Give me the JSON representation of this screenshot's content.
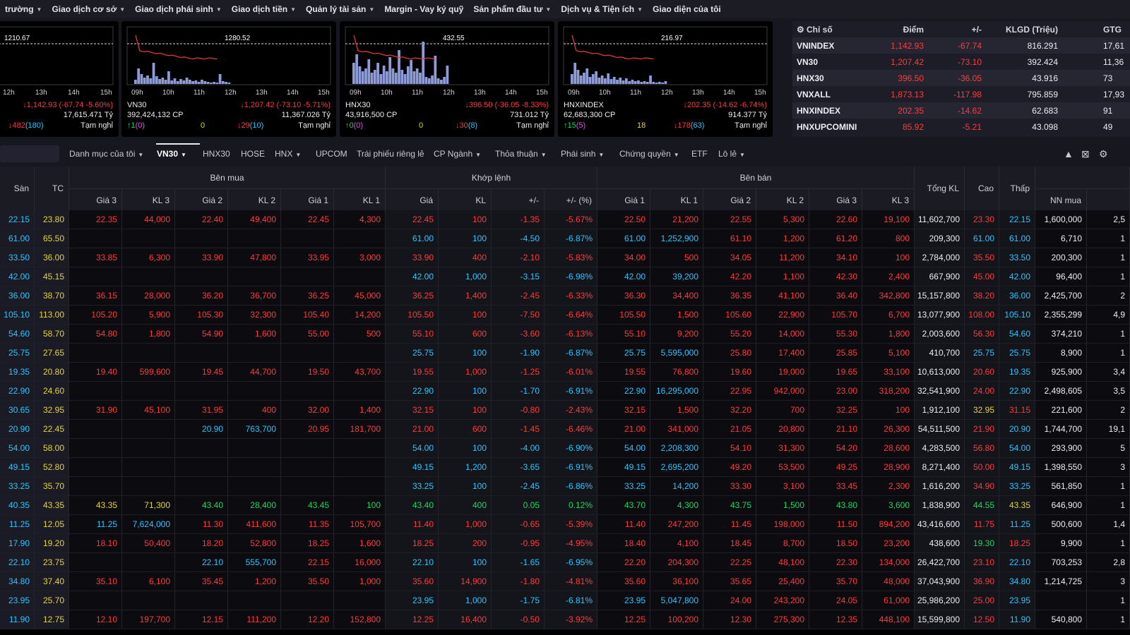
{
  "menu": [
    {
      "label": "trường",
      "chev": true
    },
    {
      "label": "Giao dịch cơ sở",
      "chev": true
    },
    {
      "label": "Giao dịch phái sinh",
      "chev": true
    },
    {
      "label": "Giao dịch tiền",
      "chev": true
    },
    {
      "label": "Quản lý tài sản",
      "chev": true
    },
    {
      "label": "Margin - Vay ký quỹ",
      "chev": false
    },
    {
      "label": "Sản phẩm đầu tư",
      "chev": true
    },
    {
      "label": "Dịch vụ & Tiện ích",
      "chev": true
    },
    {
      "label": "Giao diện của tôi",
      "chev": false
    }
  ],
  "charts": [
    {
      "ref_label": "1210.67",
      "hours": [
        "12h",
        "13h",
        "14h",
        "15h"
      ],
      "name": "",
      "change": "↓1,142.93 (-67.74 -5.60%)",
      "volume": "",
      "value": "17,615.471 Tỷ",
      "down": "↓482",
      "down_floor": "(180)",
      "up": "",
      "up_ceil": "",
      "unch": "",
      "status": "Tạm nghỉ",
      "bars": []
    },
    {
      "ref_label": "1280.52",
      "hours": [
        "09h",
        "10h",
        "11h",
        "12h",
        "13h",
        "14h",
        "15h"
      ],
      "name": "VN30",
      "change": "↓1,207.42 (-73.10 -5.71%)",
      "volume": "392,424,132 CP",
      "value": "11,367.026 Tỷ",
      "up": "↑1",
      "up_ceil": "(0)",
      "unch": "0",
      "down": "↓29",
      "down_floor": "(10)",
      "status": "Tạm nghỉ",
      "bars": [
        6,
        22,
        14,
        9,
        12,
        8,
        30,
        11,
        7,
        9,
        6,
        18,
        5,
        8,
        4,
        7,
        5,
        9,
        6,
        4,
        5,
        3,
        6,
        4,
        3,
        2,
        3,
        2,
        14,
        4,
        3,
        2
      ]
    },
    {
      "ref_label": "432.55",
      "hours": [
        "09h",
        "10h",
        "11h",
        "12h",
        "13h",
        "14h",
        "15h"
      ],
      "name": "HNX30",
      "change": "↓396.50 (-36.05 -8.33%)",
      "volume": "43,916,500 CP",
      "value": "731.012 Tỷ",
      "up": "↑0",
      "up_ceil": "(0)",
      "unch": "0",
      "down": "↓30",
      "down_floor": "(8)",
      "status": "Tạm nghỉ",
      "bars": [
        30,
        42,
        25,
        18,
        22,
        35,
        16,
        20,
        30,
        14,
        26,
        18,
        38,
        22,
        16,
        48,
        20,
        14,
        25,
        34,
        18,
        22,
        16,
        60,
        10,
        8,
        12,
        40,
        8,
        6,
        10,
        26
      ]
    },
    {
      "ref_label": "216.97",
      "hours": [
        "09h",
        "10h",
        "11h",
        "12h",
        "13h",
        "14h",
        "15h"
      ],
      "name": "HNXINDEX",
      "change": "↓202.35 (-14.62 -6.74%)",
      "volume": "62,683,300 CP",
      "value": "914.377 Tỷ",
      "up": "↑15",
      "up_ceil": "(5)",
      "unch": "18",
      "down": "↓178",
      "down_floor": "(63)",
      "status": "Tạm nghỉ",
      "bars": [
        14,
        30,
        20,
        12,
        16,
        22,
        10,
        14,
        18,
        9,
        12,
        8,
        15,
        7,
        10,
        6,
        9,
        5,
        8,
        4,
        6,
        4,
        5,
        3,
        4,
        3,
        12,
        3,
        2,
        3,
        2,
        4
      ]
    }
  ],
  "index_header": {
    "col1": "Chỉ số",
    "col2": "Điểm",
    "col3": "+/-",
    "col4": "KLGD (Triệu)",
    "col5": "GTG"
  },
  "index_rows": [
    {
      "name": "VNINDEX",
      "point": "1,142.93",
      "chg": "-67.74",
      "vol": "816.291",
      "val": "17,61"
    },
    {
      "name": "VN30",
      "point": "1,207.42",
      "chg": "-73.10",
      "vol": "392.424",
      "val": "11,36"
    },
    {
      "name": "HNX30",
      "point": "396.50",
      "chg": "-36.05",
      "vol": "43.916",
      "val": "73"
    },
    {
      "name": "VNXALL",
      "point": "1,873.13",
      "chg": "-117.98",
      "vol": "795.859",
      "val": "17,93"
    },
    {
      "name": "HNXINDEX",
      "point": "202.35",
      "chg": "-14.62",
      "vol": "62.683",
      "val": "91"
    },
    {
      "name": "HNXUPCOMINI",
      "point": "85.92",
      "chg": "-5.21",
      "vol": "43.098",
      "val": "49"
    }
  ],
  "tabs": [
    {
      "label": "Danh mục của tôi",
      "chev": true,
      "active": false
    },
    {
      "label": "VN30",
      "chev": true,
      "active": true
    },
    {
      "label": "HNX30",
      "chev": false,
      "active": false
    },
    {
      "label": "HOSE",
      "chev": false,
      "active": false
    },
    {
      "label": "HNX",
      "chev": true,
      "active": false
    },
    {
      "label": "UPCOM",
      "chev": false,
      "active": false
    },
    {
      "label": "Trái phiếu riêng lẻ",
      "chev": false,
      "active": false
    },
    {
      "label": "CP Ngành",
      "chev": true,
      "active": false
    },
    {
      "label": "Thỏa thuận",
      "chev": true,
      "active": false
    },
    {
      "label": "Phái sinh",
      "chev": true,
      "active": false
    },
    {
      "label": "Chứng quyền",
      "chev": true,
      "active": false
    },
    {
      "label": "ETF",
      "chev": false,
      "active": false
    },
    {
      "label": "Lô lẻ",
      "chev": true,
      "active": false
    }
  ],
  "board_header": {
    "san": "Sàn",
    "tc": "TC",
    "buy": "Bên mua",
    "match": "Khớp lệnh",
    "sell": "Bên bán",
    "total": "Tổng KL",
    "high": "Cao",
    "low": "Thấp",
    "sub": [
      "Giá 3",
      "KL 3",
      "Giá 2",
      "KL 2",
      "Giá 1",
      "KL 1",
      "Giá",
      "KL",
      "+/-",
      "+/- (%)",
      "Giá 1",
      "KL 1",
      "Giá 2",
      "KL 2",
      "Giá 3",
      "KL 3"
    ],
    "nn": "NN mua"
  },
  "rows": [
    [
      "22.15",
      "23.80",
      "22.35",
      "44,000",
      "22.40",
      "49,400",
      "22.45",
      "4,300",
      "22.45",
      "100",
      "-1.35",
      "-5.67%",
      "22.50",
      "21,200",
      "22.55",
      "5,300",
      "22.60",
      "19,100",
      "11,602,700",
      "23.30",
      "22.15",
      "1,600,000",
      "2,5"
    ],
    [
      "61.00",
      "65.50",
      "",
      "",
      "",
      "",
      "",
      "",
      "61.00",
      "100",
      "-4.50",
      "-6.87%",
      "61.00",
      "1,252,900",
      "61.10",
      "1,200",
      "61.20",
      "800",
      "209,300",
      "61.00",
      "61.00",
      "6,710",
      "1"
    ],
    [
      "33.50",
      "36.00",
      "33.85",
      "6,300",
      "33.90",
      "47,800",
      "33.95",
      "3,000",
      "33.90",
      "400",
      "-2.10",
      "-5.83%",
      "34.00",
      "500",
      "34.05",
      "11,200",
      "34.10",
      "100",
      "2,784,000",
      "35.50",
      "33.50",
      "200,300",
      "1"
    ],
    [
      "42.00",
      "45.15",
      "",
      "",
      "",
      "",
      "",
      "",
      "42.00",
      "1,000",
      "-3.15",
      "-6.98%",
      "42.00",
      "39,200",
      "42.20",
      "1,100",
      "42.30",
      "2,400",
      "667,900",
      "45.00",
      "42.00",
      "96,400",
      "1"
    ],
    [
      "36.00",
      "38.70",
      "36.15",
      "28,000",
      "36.20",
      "36,700",
      "36.25",
      "45,000",
      "36.25",
      "1,400",
      "-2.45",
      "-6.33%",
      "36.30",
      "34,400",
      "36.35",
      "41,100",
      "36.40",
      "342,800",
      "15,157,800",
      "38.20",
      "36.00",
      "2,425,700",
      "2"
    ],
    [
      "105.10",
      "113.00",
      "105.20",
      "5,900",
      "105.30",
      "32,300",
      "105.40",
      "14,200",
      "105.50",
      "100",
      "-7.50",
      "-6.64%",
      "105.50",
      "1,500",
      "105.60",
      "22,900",
      "105.70",
      "6,700",
      "13,077,900",
      "108.00",
      "105.10",
      "2,355,299",
      "4,9"
    ],
    [
      "54.60",
      "58.70",
      "54.80",
      "1,800",
      "54.90",
      "1,600",
      "55.00",
      "500",
      "55.10",
      "600",
      "-3.60",
      "-6.13%",
      "55.10",
      "9,200",
      "55.20",
      "14,000",
      "55.30",
      "1,800",
      "2,003,600",
      "56.30",
      "54.60",
      "374,210",
      "1"
    ],
    [
      "25.75",
      "27.65",
      "",
      "",
      "",
      "",
      "",
      "",
      "25.75",
      "100",
      "-1.90",
      "-6.87%",
      "25.75",
      "5,595,000",
      "25.80",
      "17,400",
      "25.85",
      "5,100",
      "410,700",
      "25.75",
      "25.75",
      "8,900",
      "1"
    ],
    [
      "19.35",
      "20.80",
      "19.40",
      "599,600",
      "19.45",
      "44,700",
      "19.50",
      "43,700",
      "19.55",
      "1,000",
      "-1.25",
      "-6.01%",
      "19.55",
      "76,800",
      "19.60",
      "19,000",
      "19.65",
      "33,100",
      "10,613,000",
      "20.60",
      "19.35",
      "925,900",
      "3,4"
    ],
    [
      "22.90",
      "24.60",
      "",
      "",
      "",
      "",
      "",
      "",
      "22.90",
      "100",
      "-1.70",
      "-6.91%",
      "22.90",
      "16,295,000",
      "22.95",
      "942,000",
      "23.00",
      "318,200",
      "32,541,900",
      "24.00",
      "22.90",
      "2,498,605",
      "3,5"
    ],
    [
      "30.65",
      "32.95",
      "31.90",
      "45,100",
      "31.95",
      "400",
      "32.00",
      "1,400",
      "32.15",
      "100",
      "-0.80",
      "-2.43%",
      "32.15",
      "1,500",
      "32.20",
      "700",
      "32.25",
      "100",
      "1,912,100",
      "32.95",
      "31.15",
      "221,600",
      "2"
    ],
    [
      "20.90",
      "22.45",
      "",
      "",
      "20.90",
      "763,700",
      "20.95",
      "181,700",
      "21.00",
      "600",
      "-1.45",
      "-6.46%",
      "21.00",
      "341,000",
      "21.05",
      "20,800",
      "21.10",
      "26,300",
      "54,511,500",
      "21.90",
      "20.90",
      "1,744,700",
      "19,1"
    ],
    [
      "54.00",
      "58.00",
      "",
      "",
      "",
      "",
      "",
      "",
      "54.00",
      "100",
      "-4.00",
      "-6.90%",
      "54.00",
      "2,208,300",
      "54.10",
      "31,300",
      "54.20",
      "28,600",
      "4,283,500",
      "56.80",
      "54.00",
      "293,900",
      "5"
    ],
    [
      "49.15",
      "52.80",
      "",
      "",
      "",
      "",
      "",
      "",
      "49.15",
      "1,200",
      "-3.65",
      "-6.91%",
      "49.15",
      "2,695,200",
      "49.20",
      "53,500",
      "49.25",
      "28,900",
      "8,271,400",
      "50.00",
      "49.15",
      "1,398,550",
      "3"
    ],
    [
      "33.25",
      "35.70",
      "",
      "",
      "",
      "",
      "",
      "",
      "33.25",
      "100",
      "-2.45",
      "-6.86%",
      "33.25",
      "14,200",
      "33.30",
      "3,100",
      "33.45",
      "2,300",
      "1,616,200",
      "34.90",
      "33.25",
      "561,850",
      "1"
    ],
    [
      "40.35",
      "43.35",
      "43.35",
      "71,300",
      "43.40",
      "28,400",
      "43.45",
      "100",
      "43.40",
      "400",
      "0.05",
      "0.12%",
      "43.70",
      "4,300",
      "43.75",
      "1,500",
      "43.80",
      "3,600",
      "1,838,900",
      "44.55",
      "43.35",
      "646,900",
      "1"
    ],
    [
      "11.25",
      "12.05",
      "11.25",
      "7,624,000",
      "11.30",
      "411,600",
      "11.35",
      "105,700",
      "11.40",
      "1,000",
      "-0.65",
      "-5.39%",
      "11.40",
      "247,200",
      "11.45",
      "198,000",
      "11.50",
      "894,200",
      "43,416,600",
      "11.75",
      "11.25",
      "500,600",
      "1,4"
    ],
    [
      "17.90",
      "19.20",
      "18.10",
      "50,400",
      "18.20",
      "52,800",
      "18.25",
      "1,600",
      "18.25",
      "200",
      "-0.95",
      "-4.95%",
      "18.40",
      "4,100",
      "18.45",
      "8,700",
      "18.50",
      "23,200",
      "438,600",
      "19.30",
      "18.25",
      "9,900",
      "1"
    ],
    [
      "22.10",
      "23.75",
      "",
      "",
      "22.10",
      "555,700",
      "22.15",
      "16,000",
      "22.10",
      "100",
      "-1.65",
      "-6.95%",
      "22.20",
      "204,300",
      "22.25",
      "48,100",
      "22.30",
      "134,000",
      "26,422,700",
      "23.10",
      "22.10",
      "703,253",
      "2,8"
    ],
    [
      "34.80",
      "37.40",
      "35.10",
      "6,100",
      "35.45",
      "1,200",
      "35.50",
      "1,000",
      "35.60",
      "14,900",
      "-1.80",
      "-4.81%",
      "35.60",
      "36,100",
      "35.65",
      "25,400",
      "35.70",
      "48,000",
      "37,043,900",
      "36.90",
      "34.80",
      "1,214,725",
      "3"
    ],
    [
      "23.95",
      "25.70",
      "",
      "",
      "",
      "",
      "",
      "",
      "23.95",
      "1,000",
      "-1.75",
      "-6.81%",
      "23.95",
      "5,047,800",
      "24.00",
      "243,200",
      "24.05",
      "61,000",
      "25,986,200",
      "25.00",
      "23.95",
      "",
      "1"
    ],
    [
      "11.90",
      "12.75",
      "12.10",
      "197,700",
      "12.15",
      "111,200",
      "12.20",
      "152,800",
      "12.25",
      "16,400",
      "-0.50",
      "-3.92%",
      "12.25",
      "100,200",
      "12.30",
      "275,300",
      "12.35",
      "448,100",
      "15,599,800",
      "12.50",
      "11.90",
      "540,800",
      "1"
    ]
  ],
  "colors": {
    "up": "#1ed760",
    "down": "#ff3b3b",
    "ref": "#e5d33f",
    "floor": "#2ec4ff",
    "ceil": "#e052e0"
  }
}
